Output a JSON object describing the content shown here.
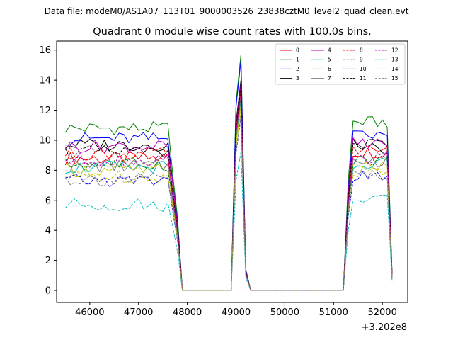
{
  "chart_data": {
    "type": "line",
    "suptitle": "Data file: modeM0/AS1A07_113T01_9000003526_23838cztM0_level2_quad_clean.evt",
    "title": "Quadrant 0 module wise count rates with 100.0s bins.",
    "xlabel": "",
    "ylabel": "",
    "x_offset_label": "+3.202e8",
    "xlim": [
      45320,
      52520
    ],
    "ylim": [
      -0.8,
      16.6
    ],
    "x_ticks": [
      46000,
      47000,
      48000,
      49000,
      50000,
      51000,
      52000
    ],
    "x_tick_labels": [
      "46000",
      "47000",
      "48000",
      "49000",
      "50000",
      "51000",
      "52000"
    ],
    "y_ticks": [
      0,
      2,
      4,
      6,
      8,
      10,
      12,
      14,
      16
    ],
    "y_tick_labels": [
      "0",
      "2",
      "4",
      "6",
      "8",
      "10",
      "12",
      "14",
      "16"
    ],
    "x_note": "x values are seconds relative to offset 3.202e8",
    "segments": [
      {
        "start": 45500,
        "step": 100,
        "count": 23
      },
      {
        "start": 47800,
        "step": 100,
        "count": 11
      },
      {
        "start": 48900,
        "step": 100,
        "count": 4
      },
      {
        "start": 49300,
        "step": 100,
        "count": 19
      },
      {
        "start": 51200,
        "step": 100,
        "count": 11
      }
    ],
    "legend_position": "upper right",
    "series": [
      {
        "name": "0",
        "color": "#ff0000",
        "dash": "solid",
        "base": 8.8,
        "flare_peak": 13.2,
        "tail": 9.2
      },
      {
        "name": "1",
        "color": "#008000",
        "dash": "solid",
        "base": 10.8,
        "flare_peak": 15.7,
        "tail": 11.2
      },
      {
        "name": "2",
        "color": "#0000ff",
        "dash": "solid",
        "base": 10.1,
        "flare_peak": 15.3,
        "tail": 10.3
      },
      {
        "name": "3",
        "color": "#000000",
        "dash": "solid",
        "base": 9.7,
        "flare_peak": 14.0,
        "tail": 9.7
      },
      {
        "name": "4",
        "color": "#bf00bf",
        "dash": "solid",
        "base": 9.6,
        "flare_peak": 13.7,
        "tail": 9.8
      },
      {
        "name": "5",
        "color": "#00bfbf",
        "dash": "solid",
        "base": 8.2,
        "flare_peak": 12.6,
        "tail": 8.5
      },
      {
        "name": "6",
        "color": "#bfbf00",
        "dash": "solid",
        "base": 8.0,
        "flare_peak": 12.3,
        "tail": 8.3
      },
      {
        "name": "7",
        "color": "#808080",
        "dash": "solid",
        "base": 8.3,
        "flare_peak": 12.8,
        "tail": 8.6
      },
      {
        "name": "8",
        "color": "#ff0000",
        "dash": "dashed",
        "base": 9.1,
        "flare_peak": 13.4,
        "tail": 9.3
      },
      {
        "name": "9",
        "color": "#008000",
        "dash": "dashed",
        "base": 8.4,
        "flare_peak": 12.9,
        "tail": 8.7
      },
      {
        "name": "10",
        "color": "#0000ff",
        "dash": "dashed",
        "base": 7.3,
        "flare_peak": 11.5,
        "tail": 7.6
      },
      {
        "name": "11",
        "color": "#000000",
        "dash": "dashed",
        "base": 9.2,
        "flare_peak": 13.5,
        "tail": 9.4
      },
      {
        "name": "12",
        "color": "#bf00bf",
        "dash": "dashed",
        "base": 8.7,
        "flare_peak": 13.1,
        "tail": 8.8
      },
      {
        "name": "13",
        "color": "#00bfbf",
        "dash": "dashed",
        "base": 5.7,
        "flare_peak": 9.2,
        "tail": 6.1
      },
      {
        "name": "14",
        "color": "#bfbf00",
        "dash": "dashed",
        "base": 7.6,
        "flare_peak": 11.9,
        "tail": 7.9
      },
      {
        "name": "15",
        "color": "#808080",
        "dash": "dashed",
        "base": 7.4,
        "flare_peak": 11.6,
        "tail": 7.7
      }
    ]
  }
}
